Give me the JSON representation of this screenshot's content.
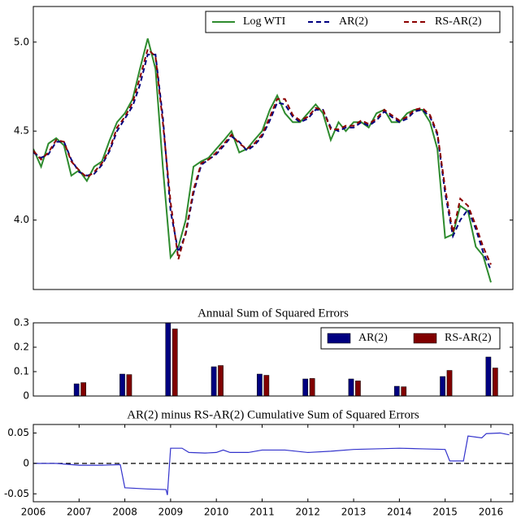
{
  "chart_data": [
    {
      "type": "line",
      "xlim": [
        2006,
        2016.48
      ],
      "ylim": [
        3.61,
        5.2
      ],
      "yticks": [
        {
          "value": 4,
          "label": "4.0"
        },
        4.5,
        {
          "value": 5,
          "label": "5.0"
        }
      ],
      "legend": "upper right",
      "x": [
        2006,
        2006.17,
        2006.33,
        2006.5,
        2006.67,
        2006.83,
        2007,
        2007.17,
        2007.33,
        2007.5,
        2007.67,
        2007.83,
        2008,
        2008.17,
        2008.33,
        2008.5,
        2008.67,
        2008.83,
        2009,
        2009.17,
        2009.33,
        2009.5,
        2009.67,
        2009.83,
        2010,
        2010.17,
        2010.33,
        2010.5,
        2010.67,
        2010.83,
        2011,
        2011.17,
        2011.33,
        2011.5,
        2011.67,
        2011.83,
        2012,
        2012.17,
        2012.33,
        2012.5,
        2012.67,
        2012.83,
        2013,
        2013.17,
        2013.33,
        2013.5,
        2013.67,
        2013.83,
        2014,
        2014.17,
        2014.33,
        2014.5,
        2014.67,
        2014.83,
        2015,
        2015.17,
        2015.33,
        2015.5,
        2015.67,
        2015.83,
        2016
      ],
      "series": [
        {
          "name": "Log WTI",
          "color": "#2e8b2e",
          "dashed": false,
          "values": [
            4.4,
            4.3,
            4.43,
            4.46,
            4.42,
            4.25,
            4.28,
            4.22,
            4.3,
            4.33,
            4.45,
            4.55,
            4.6,
            4.68,
            4.85,
            5.02,
            4.85,
            4.3,
            3.79,
            3.85,
            4.0,
            4.3,
            4.33,
            4.35,
            4.4,
            4.45,
            4.5,
            4.38,
            4.4,
            4.45,
            4.5,
            4.62,
            4.7,
            4.6,
            4.55,
            4.55,
            4.6,
            4.65,
            4.6,
            4.45,
            4.55,
            4.5,
            4.55,
            4.55,
            4.52,
            4.6,
            4.62,
            4.55,
            4.55,
            4.6,
            4.62,
            4.62,
            4.55,
            4.4,
            3.9,
            3.92,
            4.08,
            4.05,
            3.85,
            3.8,
            3.65
          ]
        },
        {
          "name": "AR(2)",
          "color": "#000080",
          "dashed": true,
          "values": [
            4.38,
            4.35,
            4.37,
            4.44,
            4.44,
            4.34,
            4.27,
            4.25,
            4.26,
            4.31,
            4.39,
            4.5,
            4.57,
            4.64,
            4.76,
            4.93,
            4.93,
            4.58,
            4.05,
            3.82,
            3.92,
            4.15,
            4.31,
            4.34,
            4.37,
            4.42,
            4.47,
            4.44,
            4.39,
            4.42,
            4.47,
            4.56,
            4.66,
            4.65,
            4.58,
            4.55,
            4.57,
            4.62,
            4.62,
            4.52,
            4.5,
            4.52,
            4.52,
            4.55,
            4.53,
            4.56,
            4.61,
            4.58,
            4.55,
            4.57,
            4.61,
            4.62,
            4.58,
            4.48,
            4.15,
            3.91,
            4.0,
            4.06,
            3.95,
            3.82,
            3.72
          ]
        },
        {
          "name": "RS-AR(2)",
          "color": "#8b0000",
          "dashed": true,
          "values": [
            4.39,
            4.34,
            4.38,
            4.45,
            4.44,
            4.33,
            4.28,
            4.24,
            4.27,
            4.32,
            4.4,
            4.52,
            4.58,
            4.66,
            4.8,
            4.96,
            4.92,
            4.55,
            4.1,
            3.78,
            3.93,
            4.17,
            4.32,
            4.34,
            4.38,
            4.43,
            4.48,
            4.43,
            4.4,
            4.43,
            4.48,
            4.58,
            4.68,
            4.68,
            4.59,
            4.56,
            4.58,
            4.63,
            4.62,
            4.51,
            4.51,
            4.53,
            4.53,
            4.56,
            4.54,
            4.57,
            4.62,
            4.59,
            4.56,
            4.58,
            4.62,
            4.63,
            4.59,
            4.49,
            4.18,
            3.93,
            4.12,
            4.08,
            3.97,
            3.85,
            3.75
          ]
        }
      ]
    },
    {
      "type": "bar",
      "title": "Annual Sum of Squared Errors",
      "xlim": [
        2006,
        2016.48
      ],
      "ylim": [
        0,
        0.3
      ],
      "yticks": [
        0,
        0.1,
        0.2,
        0.3
      ],
      "legend": "upper right",
      "x": [
        2007,
        2008,
        2009,
        2010,
        2011,
        2012,
        2013,
        2014,
        2015,
        2016
      ],
      "series": [
        {
          "name": "AR(2)",
          "color": "#000080",
          "values": [
            0.05,
            0.09,
            0.3,
            0.12,
            0.09,
            0.07,
            0.07,
            0.04,
            0.08,
            0.16
          ]
        },
        {
          "name": "RS-AR(2)",
          "color": "#800000",
          "values": [
            0.055,
            0.088,
            0.275,
            0.125,
            0.085,
            0.072,
            0.062,
            0.038,
            0.105,
            0.115
          ]
        }
      ]
    },
    {
      "type": "line",
      "title": "AR(2) minus RS-AR(2) Cumulative Sum of Squared Errors",
      "xlim": [
        2006,
        2016.48
      ],
      "ylim": [
        -0.063,
        0.064
      ],
      "yticks": [
        -0.05,
        0,
        0.05
      ],
      "xticks": [
        2006,
        2007,
        2008,
        2009,
        2010,
        2011,
        2012,
        2013,
        2014,
        2015,
        2016
      ],
      "hline": 0,
      "x": [
        2006,
        2006.5,
        2007,
        2007.5,
        2007.9,
        2008,
        2008.5,
        2008.9,
        2008.93,
        2009,
        2009.25,
        2009.4,
        2009.75,
        2010,
        2010.15,
        2010.3,
        2010.7,
        2011,
        2011.5,
        2012,
        2012.5,
        2013,
        2013.5,
        2014,
        2014.5,
        2015,
        2015.1,
        2015.4,
        2015.5,
        2015.8,
        2015.9,
        2016.2,
        2016.4
      ],
      "series": [
        {
          "color": "#3333cc",
          "dashed": false,
          "values": [
            0,
            0,
            -0.003,
            -0.003,
            -0.002,
            -0.04,
            -0.042,
            -0.043,
            -0.052,
            0.025,
            0.025,
            0.018,
            0.017,
            0.018,
            0.022,
            0.018,
            0.018,
            0.022,
            0.022,
            0.018,
            0.02,
            0.023,
            0.024,
            0.025,
            0.024,
            0.023,
            0.004,
            0.004,
            0.045,
            0.042,
            0.049,
            0.05,
            0.047
          ]
        }
      ]
    }
  ]
}
